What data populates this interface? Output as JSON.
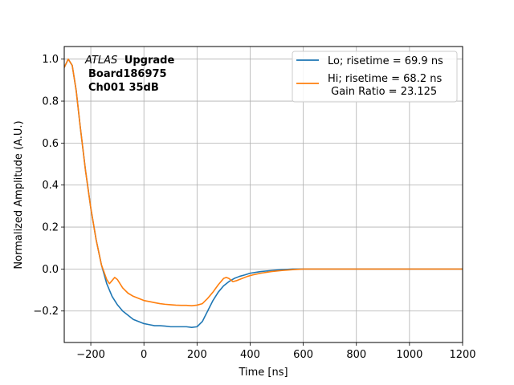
{
  "chart_data": {
    "type": "line",
    "xlabel": "Time [ns]",
    "ylabel": "Normalized Amplitude (A.U.)",
    "xlim": [
      -300,
      1200
    ],
    "ylim": [
      -0.35,
      1.06
    ],
    "x_ticks": [
      -200,
      0,
      200,
      400,
      600,
      800,
      1000,
      1200
    ],
    "x_tick_labels": [
      "−200",
      "0",
      "200",
      "400",
      "600",
      "800",
      "1000",
      "1200"
    ],
    "y_ticks": [
      -0.2,
      0.0,
      0.2,
      0.4,
      0.6,
      0.8,
      1.0
    ],
    "y_tick_labels": [
      "−0.2",
      "0.0",
      "0.2",
      "0.4",
      "0.6",
      "0.8",
      "1.0"
    ],
    "grid": true,
    "legend_position": "top-right",
    "annotation": {
      "atlas": "ATLAS",
      "upgrade": "Upgrade",
      "board": "Board186975",
      "channel": "Ch001 35dB"
    },
    "series": [
      {
        "name": "Lo; risetime = 69.9 ns",
        "color": "#1f77b4",
        "x": [
          -300,
          -285,
          -270,
          -255,
          -240,
          -220,
          -200,
          -180,
          -160,
          -140,
          -120,
          -100,
          -80,
          -60,
          -40,
          -20,
          0,
          20,
          40,
          60,
          80,
          100,
          120,
          140,
          160,
          180,
          200,
          220,
          240,
          260,
          280,
          300,
          320,
          340,
          360,
          380,
          400,
          440,
          480,
          520,
          560,
          600,
          650,
          700,
          800,
          900,
          1000,
          1100,
          1200
        ],
        "y": [
          0.96,
          1.0,
          0.97,
          0.85,
          0.68,
          0.47,
          0.29,
          0.14,
          0.02,
          -0.07,
          -0.13,
          -0.17,
          -0.2,
          -0.22,
          -0.24,
          -0.25,
          -0.26,
          -0.265,
          -0.27,
          -0.27,
          -0.272,
          -0.275,
          -0.275,
          -0.275,
          -0.275,
          -0.278,
          -0.275,
          -0.25,
          -0.2,
          -0.15,
          -0.11,
          -0.08,
          -0.06,
          -0.045,
          -0.035,
          -0.028,
          -0.02,
          -0.012,
          -0.007,
          -0.003,
          0.0,
          0.0,
          0.0,
          0.0,
          0.0,
          0.0,
          0.0,
          0.0,
          0.0
        ]
      },
      {
        "name": "Hi; risetime = 68.2 ns\n Gain Ratio = 23.125",
        "color": "#ff7f0e",
        "x": [
          -300,
          -285,
          -270,
          -255,
          -240,
          -220,
          -200,
          -180,
          -160,
          -140,
          -130,
          -120,
          -110,
          -100,
          -90,
          -80,
          -60,
          -40,
          -20,
          0,
          20,
          40,
          60,
          80,
          100,
          120,
          140,
          160,
          180,
          200,
          220,
          240,
          260,
          280,
          300,
          310,
          320,
          335,
          350,
          370,
          390,
          410,
          440,
          480,
          520,
          560,
          600,
          650,
          700,
          800,
          900,
          1000,
          1100,
          1200
        ],
        "y": [
          0.96,
          1.0,
          0.97,
          0.85,
          0.68,
          0.47,
          0.29,
          0.14,
          0.02,
          -0.05,
          -0.07,
          -0.055,
          -0.04,
          -0.05,
          -0.07,
          -0.09,
          -0.115,
          -0.13,
          -0.14,
          -0.15,
          -0.155,
          -0.16,
          -0.165,
          -0.168,
          -0.17,
          -0.172,
          -0.173,
          -0.173,
          -0.175,
          -0.172,
          -0.165,
          -0.14,
          -0.11,
          -0.075,
          -0.045,
          -0.04,
          -0.045,
          -0.06,
          -0.055,
          -0.045,
          -0.035,
          -0.028,
          -0.02,
          -0.012,
          -0.007,
          -0.003,
          0.0,
          0.0,
          0.0,
          0.0,
          0.0,
          0.0,
          0.0,
          0.0
        ]
      }
    ]
  }
}
